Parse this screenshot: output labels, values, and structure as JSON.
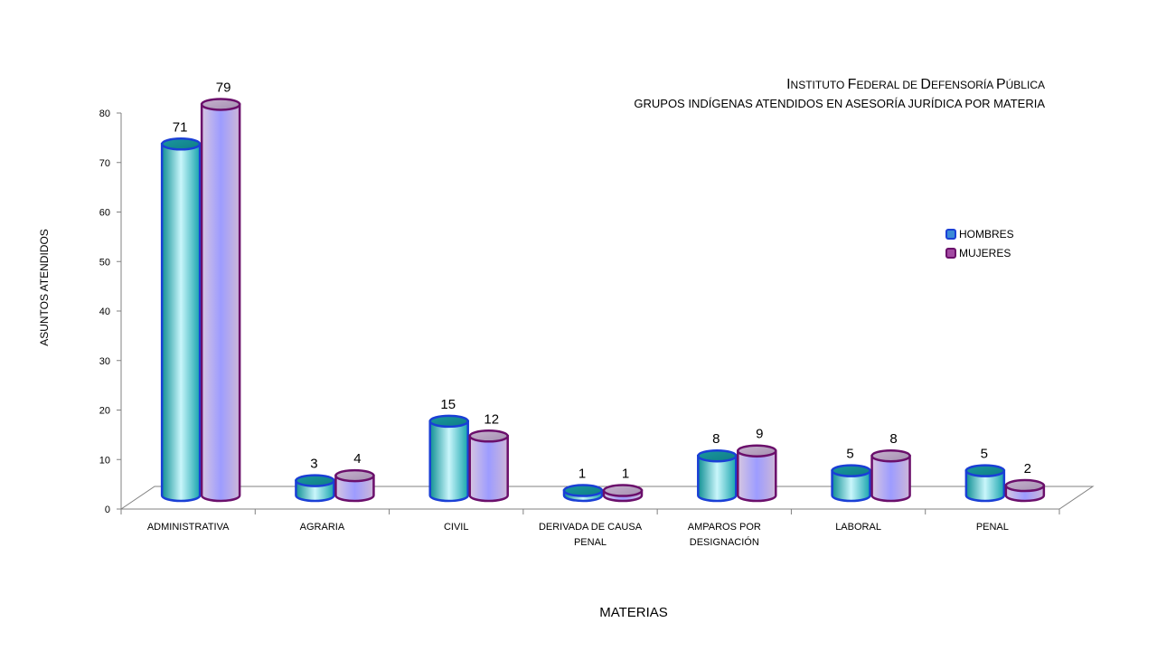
{
  "header": {
    "title_parts": [
      {
        "big": "I",
        "small": "NSTITUTO "
      },
      {
        "big": "F",
        "small": "EDERAL DE "
      },
      {
        "big": "D",
        "small": "EFENSORÍA "
      },
      {
        "big": "P",
        "small": "ÚBLICA"
      }
    ],
    "subtitle": "GRUPOS INDÍGENAS ATENDIDOS EN ASESORÍA JURÍDICA POR MATERIA"
  },
  "chart_data": {
    "type": "bar",
    "title": "INSTITUTO FEDERAL DE DEFENSORÍA PÚBLICA",
    "subtitle": "GRUPOS INDÍGENAS ATENDIDOS EN ASESORÍA JURÍDICA POR MATERIA",
    "xlabel": "MATERIAS",
    "ylabel": "ASUNTOS ATENDIDOS",
    "ylim": [
      0,
      80
    ],
    "yticks": [
      0,
      10,
      20,
      30,
      40,
      50,
      60,
      70,
      80
    ],
    "categories": [
      [
        "ADMINISTRATIVA"
      ],
      [
        "AGRARIA"
      ],
      [
        "CIVIL"
      ],
      [
        "DERIVADA DE CAUSA",
        "PENAL"
      ],
      [
        "AMPAROS POR",
        "DESIGNACIÓN"
      ],
      [
        "LABORAL"
      ],
      [
        "PENAL"
      ]
    ],
    "series": [
      {
        "name": "HOMBRES",
        "values": [
          71,
          3,
          15,
          1,
          8,
          5,
          5
        ],
        "color": "#1a3fd6"
      },
      {
        "name": "MUJERES",
        "values": [
          79,
          4,
          12,
          1,
          9,
          8,
          2
        ],
        "color": "#6b0f6b"
      }
    ],
    "legend_position": "right",
    "style": "3d-cylinder",
    "gridlines": false
  }
}
